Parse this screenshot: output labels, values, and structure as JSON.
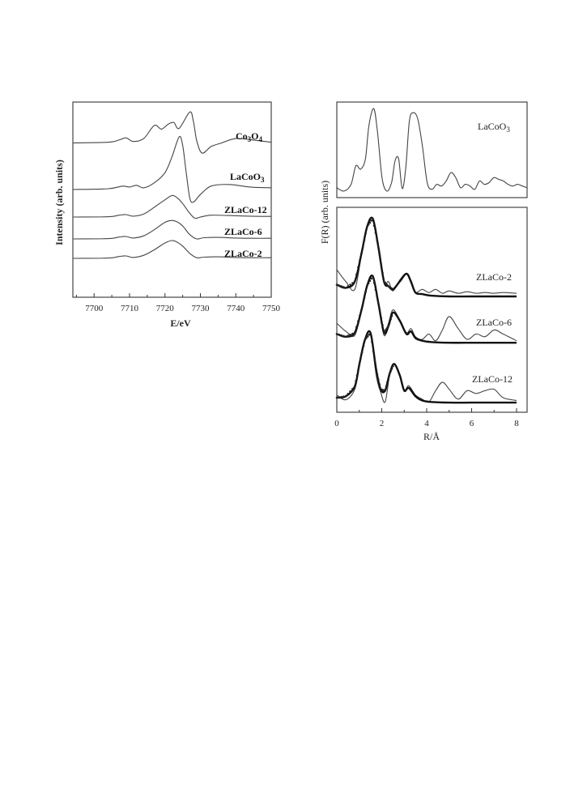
{
  "chart_data": [
    {
      "type": "line",
      "panel": "XANES",
      "xlabel": "E/eV",
      "ylabel": "Intensity  (arb.  units)",
      "xlim": [
        7694,
        7750
      ],
      "xticks": [
        7700,
        7710,
        7720,
        7730,
        7740,
        7750
      ],
      "yticks_shown": false,
      "series": [
        {
          "name": "Co3O4",
          "label_main": "Co",
          "label_sub1": "3",
          "label_mid": "O",
          "label_sub2": "4",
          "offset": 0,
          "x": [
            7694,
            7704,
            7707,
            7709,
            7711,
            7714,
            7717,
            7719,
            7721,
            7722.5,
            7724,
            7727,
            7728,
            7729,
            7730.5,
            7733,
            7736,
            7740,
            7745,
            7750
          ],
          "y": [
            0.1,
            0.12,
            0.18,
            0.24,
            0.14,
            0.22,
            0.58,
            0.48,
            0.62,
            0.66,
            0.5,
            0.95,
            0.7,
            0.15,
            -0.18,
            0.0,
            0.1,
            0.22,
            0.18,
            0.12
          ]
        },
        {
          "name": "LaCoO3",
          "label_main": "LaCoO",
          "label_sub1": "3",
          "label_mid": "",
          "label_sub2": "",
          "offset": 0,
          "x": [
            7694,
            7704,
            7708,
            7710,
            7712,
            7714,
            7717,
            7720,
            7722,
            7724,
            7725,
            7726,
            7727,
            7728,
            7730,
            7733,
            7738,
            7744,
            7750
          ],
          "y": [
            0.0,
            0.02,
            0.08,
            0.06,
            0.1,
            0.04,
            0.16,
            0.4,
            0.78,
            1.25,
            1.05,
            0.4,
            -0.2,
            -0.3,
            -0.12,
            0.08,
            0.12,
            0.06,
            0.04
          ]
        },
        {
          "name": "ZLaCo-12",
          "label_main": "ZLaCo-12",
          "label_sub1": "",
          "label_mid": "",
          "label_sub2": "",
          "offset": 0,
          "x": [
            7694,
            7704,
            7707,
            7709,
            7711,
            7714,
            7717,
            7720,
            7722,
            7723.5,
            7725,
            7727,
            7728.5,
            7730,
            7733,
            7738,
            7744,
            7750
          ],
          "y": [
            0.0,
            0.01,
            0.06,
            0.08,
            0.03,
            0.1,
            0.32,
            0.56,
            0.7,
            0.62,
            0.44,
            0.12,
            -0.04,
            0.0,
            0.06,
            0.05,
            0.03,
            0.02
          ]
        },
        {
          "name": "ZLaCo-6",
          "label_main": "ZLaCo-6",
          "label_sub1": "",
          "label_mid": "",
          "label_sub2": "",
          "offset": 0,
          "x": [
            7694,
            7704,
            7707,
            7709,
            7711,
            7714,
            7717,
            7720,
            7722,
            7723.5,
            7725,
            7727,
            7729,
            7731,
            7735,
            7740,
            7745,
            7750
          ],
          "y": [
            0.0,
            0.01,
            0.06,
            0.08,
            0.03,
            0.1,
            0.3,
            0.54,
            0.6,
            0.55,
            0.42,
            0.14,
            0.0,
            0.04,
            0.05,
            0.03,
            0.02,
            0.02
          ]
        },
        {
          "name": "ZLaCo-2",
          "label_main": "ZLaCo-2",
          "label_sub1": "",
          "label_mid": "",
          "label_sub2": "",
          "offset": 0,
          "x": [
            7694,
            7704,
            7707,
            7709,
            7711,
            7714,
            7717,
            7720,
            7722,
            7723.5,
            7725,
            7727,
            7729,
            7731,
            7735,
            7740,
            7745,
            7750
          ],
          "y": [
            0.0,
            0.01,
            0.06,
            0.08,
            0.03,
            0.1,
            0.28,
            0.5,
            0.58,
            0.52,
            0.4,
            0.16,
            0.02,
            0.04,
            0.05,
            0.03,
            0.02,
            0.02
          ]
        }
      ]
    },
    {
      "type": "line",
      "panel": "FT-top",
      "xlim": [
        0,
        8
      ],
      "series": [
        {
          "name": "LaCoO3",
          "label_main": "LaCoO",
          "label_sub1": "3",
          "x": [
            0,
            0.3,
            0.6,
            0.8,
            1.0,
            1.2,
            1.35,
            1.55,
            1.7,
            1.9,
            2.1,
            2.3,
            2.45,
            2.6,
            2.75,
            2.9,
            3.05,
            3.2,
            3.4,
            3.6,
            3.8,
            4.0,
            4.2,
            4.4,
            4.6,
            4.8,
            5.0,
            5.2,
            5.4,
            5.6,
            5.8,
            6.0,
            6.2,
            6.4,
            6.6,
            6.8,
            7.0,
            7.2,
            7.4,
            7.6,
            7.8,
            8.0
          ],
          "y": [
            0.06,
            0.02,
            0.1,
            0.32,
            0.28,
            0.4,
            0.8,
            1.0,
            0.75,
            0.18,
            0.02,
            0.12,
            0.38,
            0.4,
            0.05,
            0.3,
            0.85,
            0.95,
            0.88,
            0.55,
            0.12,
            0.04,
            0.1,
            0.08,
            0.14,
            0.24,
            0.18,
            0.06,
            0.1,
            0.08,
            0.04,
            0.14,
            0.1,
            0.12,
            0.18,
            0.16,
            0.14,
            0.1,
            0.08,
            0.1,
            0.08,
            0.06
          ]
        }
      ]
    },
    {
      "type": "line",
      "panel": "FT-bottom",
      "xlabel": "R/Å",
      "ylabel": "F(R) (arb. units)",
      "xlim": [
        0,
        8
      ],
      "xticks": [
        0,
        2,
        4,
        6,
        8
      ],
      "series": [
        {
          "name": "ZLaCo-2",
          "exp_x": [
            0,
            0.4,
            0.8,
            1.1,
            1.35,
            1.6,
            1.85,
            2.1,
            2.3,
            2.5,
            2.8,
            3.1,
            3.3,
            3.5,
            3.8,
            4.1,
            4.4,
            4.7,
            5.0,
            5.4,
            5.8,
            6.2,
            6.6,
            7.0,
            7.4,
            8.0
          ],
          "exp_y": [
            0.35,
            0.2,
            0.1,
            0.55,
            0.9,
            1.0,
            0.62,
            0.18,
            0.2,
            0.08,
            0.22,
            0.3,
            0.18,
            0.06,
            0.1,
            0.06,
            0.1,
            0.05,
            0.08,
            0.05,
            0.07,
            0.05,
            0.06,
            0.05,
            0.06,
            0.05
          ],
          "fit_x": [
            0,
            0.4,
            0.8,
            1.1,
            1.35,
            1.6,
            1.85,
            2.1,
            2.3,
            2.5,
            2.8,
            3.1,
            3.3,
            3.5,
            3.8,
            4.2,
            5.0,
            6.0,
            7.0,
            8.0
          ],
          "fit_y": [
            0.16,
            0.12,
            0.2,
            0.56,
            0.9,
            1.0,
            0.64,
            0.2,
            0.14,
            0.1,
            0.2,
            0.3,
            0.2,
            0.06,
            0.04,
            0.02,
            0.01,
            0.01,
            0.01,
            0.01
          ]
        },
        {
          "name": "ZLaCo-6",
          "exp_x": [
            0,
            0.4,
            0.8,
            1.1,
            1.35,
            1.6,
            1.85,
            2.1,
            2.3,
            2.5,
            2.8,
            3.1,
            3.3,
            3.5,
            3.8,
            4.1,
            4.4,
            4.7,
            5.0,
            5.4,
            5.8,
            6.2,
            6.6,
            7.0,
            7.4,
            8.0
          ],
          "exp_y": [
            0.3,
            0.18,
            0.12,
            0.5,
            0.86,
            1.0,
            0.58,
            0.12,
            0.3,
            0.5,
            0.35,
            0.16,
            0.22,
            0.1,
            0.06,
            0.14,
            0.04,
            0.2,
            0.4,
            0.22,
            0.06,
            0.14,
            0.1,
            0.2,
            0.14,
            0.04
          ],
          "fit_x": [
            0,
            0.4,
            0.8,
            1.1,
            1.35,
            1.6,
            1.85,
            2.1,
            2.3,
            2.5,
            2.8,
            3.1,
            3.3,
            3.5,
            3.8,
            4.2,
            5.0,
            6.0,
            7.0,
            8.0
          ],
          "fit_y": [
            0.14,
            0.1,
            0.16,
            0.5,
            0.86,
            1.0,
            0.6,
            0.16,
            0.26,
            0.46,
            0.34,
            0.14,
            0.18,
            0.08,
            0.04,
            0.02,
            0.01,
            0.01,
            0.01,
            0.01
          ]
        },
        {
          "name": "ZLaCo-12",
          "exp_x": [
            0,
            0.4,
            0.8,
            1.0,
            1.25,
            1.5,
            1.75,
            1.95,
            2.15,
            2.35,
            2.55,
            2.8,
            3.0,
            3.2,
            3.5,
            3.8,
            4.1,
            4.4,
            4.7,
            5.0,
            5.4,
            5.8,
            6.2,
            6.6,
            7.0,
            7.4,
            8.0
          ],
          "exp_y": [
            0.12,
            0.05,
            0.2,
            0.55,
            0.9,
            1.0,
            0.4,
            0.16,
            0.02,
            0.4,
            0.55,
            0.4,
            0.18,
            0.25,
            0.12,
            0.06,
            0.02,
            0.18,
            0.3,
            0.2,
            0.06,
            0.18,
            0.14,
            0.18,
            0.2,
            0.08,
            0.04
          ],
          "fit_x": [
            0,
            0.4,
            0.8,
            1.0,
            1.25,
            1.5,
            1.75,
            1.95,
            2.15,
            2.35,
            2.55,
            2.8,
            3.0,
            3.2,
            3.5,
            3.8,
            4.2,
            5.0,
            6.0,
            7.0,
            8.0
          ],
          "fit_y": [
            0.08,
            0.1,
            0.24,
            0.55,
            0.9,
            1.0,
            0.48,
            0.2,
            0.18,
            0.42,
            0.56,
            0.4,
            0.18,
            0.22,
            0.1,
            0.04,
            0.02,
            0.01,
            0.01,
            0.01,
            0.01
          ]
        }
      ]
    }
  ]
}
